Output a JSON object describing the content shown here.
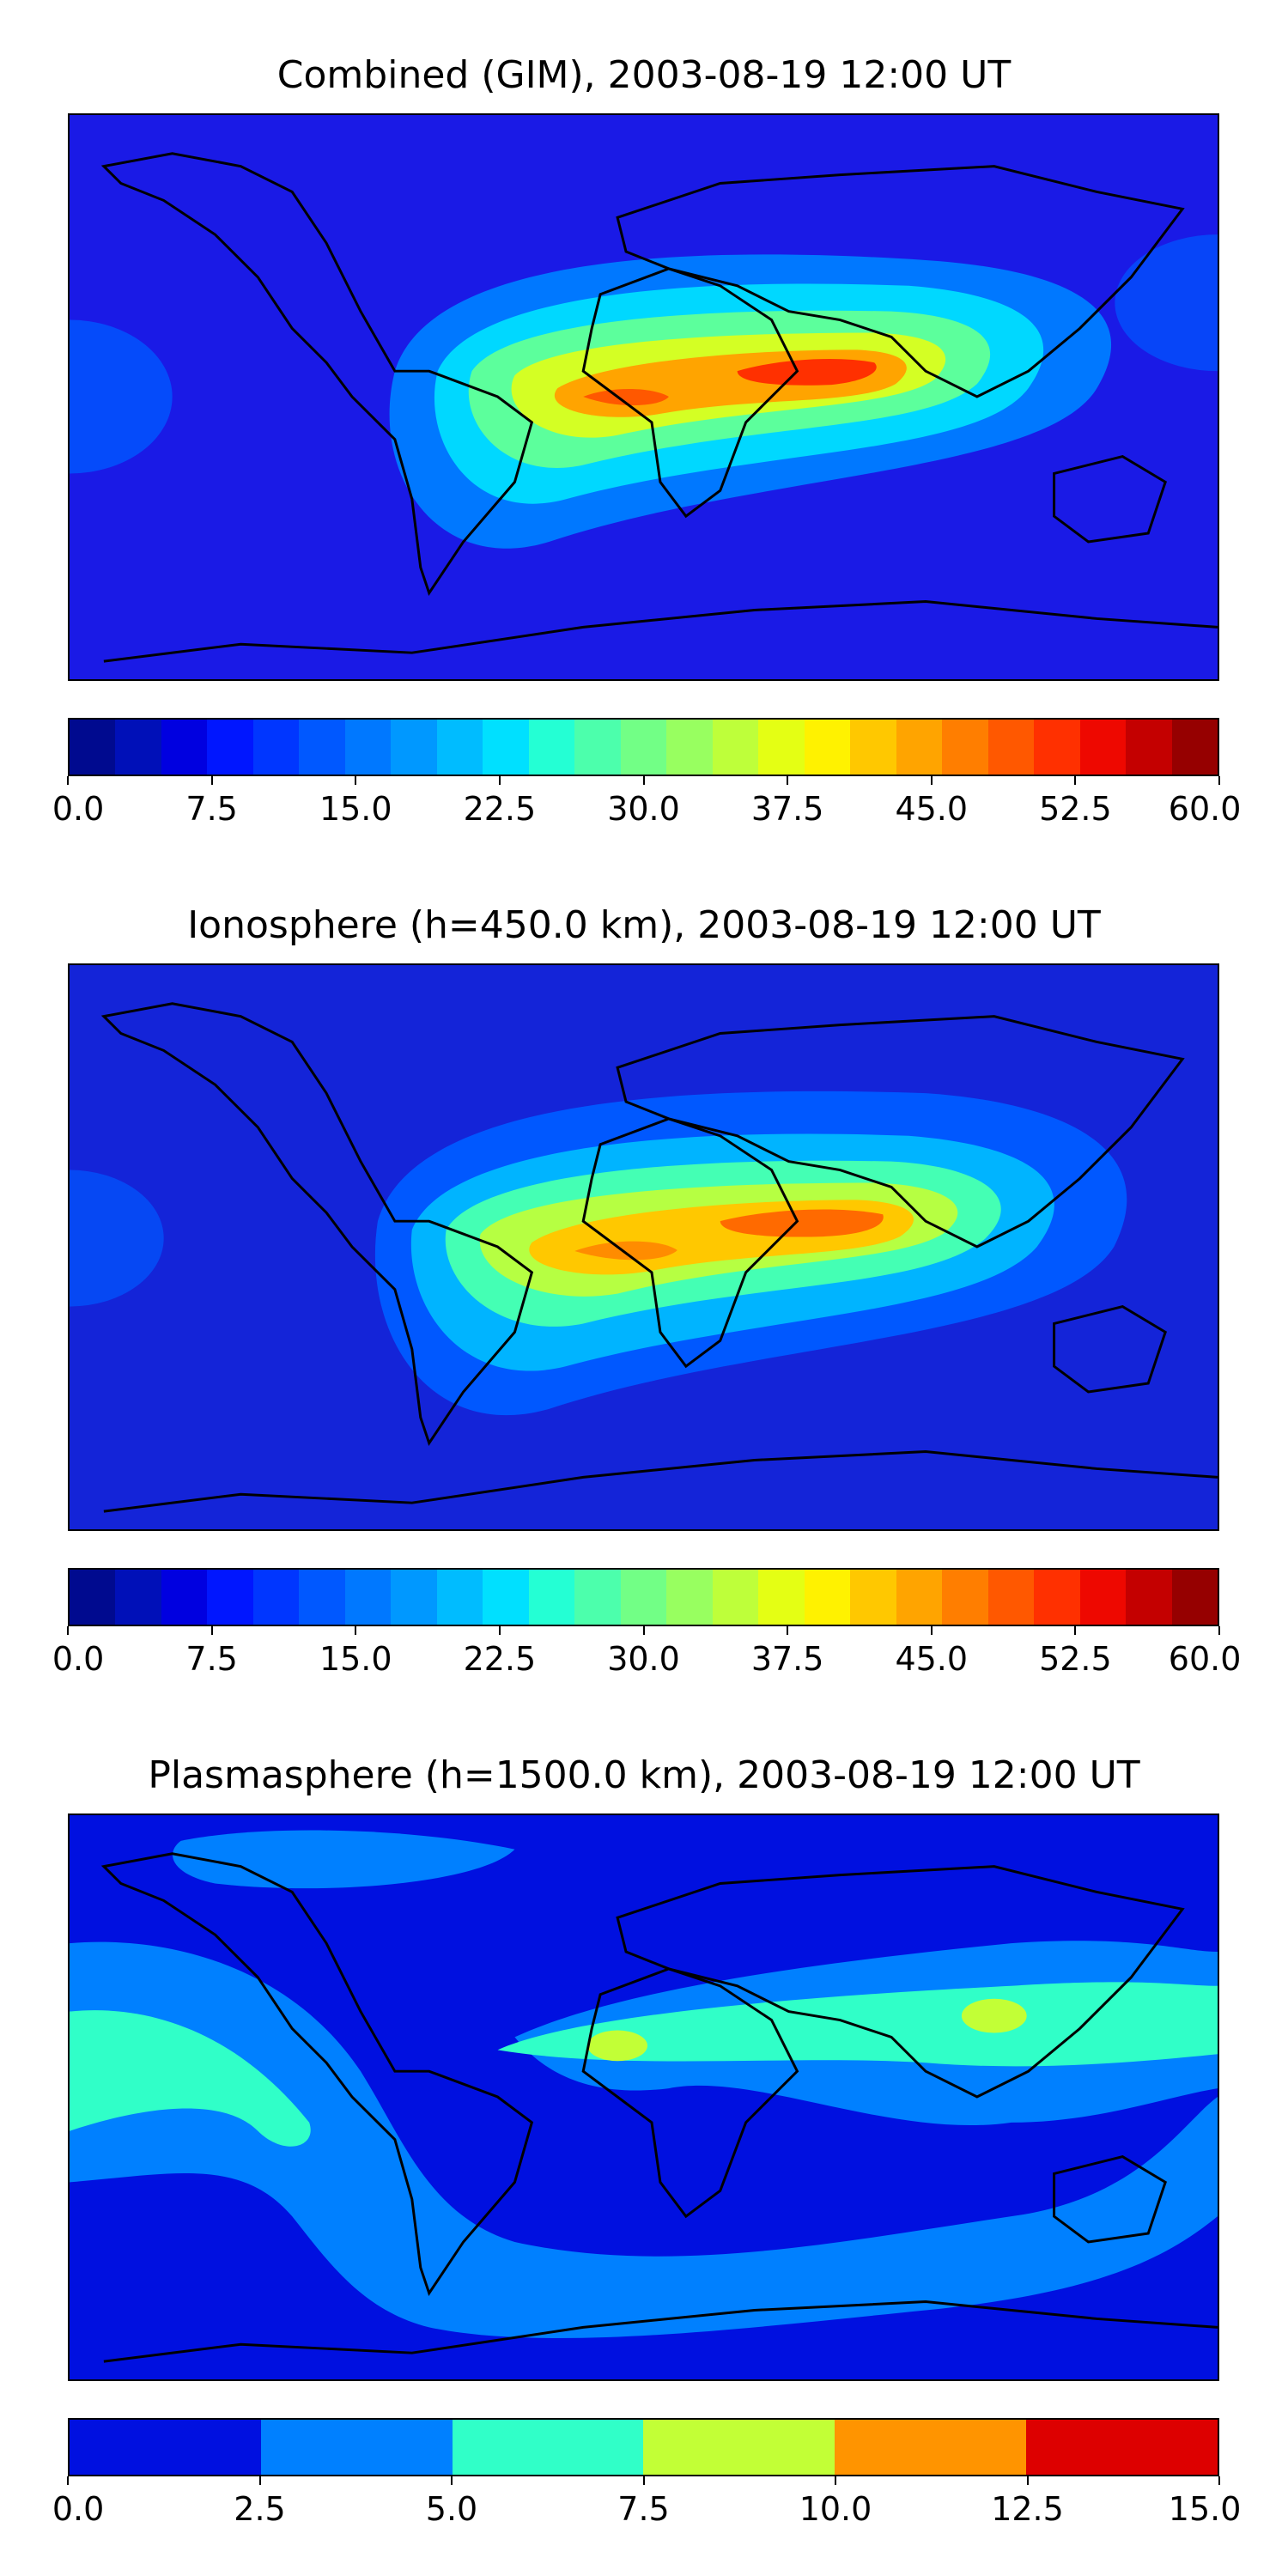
{
  "panels": [
    {
      "title": "Combined (GIM), 2003-08-19 12:00 UT",
      "colorbar": {
        "colors": [
          "#000a8f",
          "#0010b8",
          "#0000e0",
          "#0016ff",
          "#0036ff",
          "#0058ff",
          "#0078ff",
          "#0098ff",
          "#00bcff",
          "#00e0ff",
          "#24ffd4",
          "#4cffac",
          "#72ff86",
          "#98ff60",
          "#beff3a",
          "#e4ff14",
          "#fff200",
          "#ffc800",
          "#ffa400",
          "#ff7e00",
          "#ff5800",
          "#ff3000",
          "#ee0800",
          "#c40000",
          "#960000"
        ],
        "ticks": [
          "0.0",
          "7.5",
          "15.0",
          "22.5",
          "30.0",
          "37.5",
          "45.0",
          "52.5",
          "60.0"
        ]
      },
      "map": {
        "background": "#1a1ae6",
        "contours": [
          {
            "label": "band-12",
            "color": "#0078ff"
          },
          {
            "label": "band-20",
            "color": "#00d8ff"
          },
          {
            "label": "band-27",
            "color": "#5cff9c"
          },
          {
            "label": "band-35",
            "color": "#d4ff24"
          },
          {
            "label": "band-42",
            "color": "#ffa400"
          },
          {
            "label": "band-50",
            "color": "#ff3000"
          }
        ]
      }
    },
    {
      "title": "Ionosphere  (h=450.0 km), 2003-08-19 12:00 UT",
      "colorbar": {
        "colors": [
          "#000a8f",
          "#0010b8",
          "#0000e0",
          "#0016ff",
          "#0036ff",
          "#0058ff",
          "#0078ff",
          "#0098ff",
          "#00bcff",
          "#00e0ff",
          "#24ffd4",
          "#4cffac",
          "#72ff86",
          "#98ff60",
          "#beff3a",
          "#e4ff14",
          "#fff200",
          "#ffc800",
          "#ffa400",
          "#ff7e00",
          "#ff5800",
          "#ff3000",
          "#ee0800",
          "#c40000",
          "#960000"
        ],
        "ticks": [
          "0.0",
          "7.5",
          "15.0",
          "22.5",
          "30.0",
          "37.5",
          "45.0",
          "52.5",
          "60.0"
        ]
      },
      "map": {
        "background": "#1424d8",
        "contours": [
          {
            "label": "band-10",
            "color": "#0058ff"
          },
          {
            "label": "band-17",
            "color": "#00b4ff"
          },
          {
            "label": "band-25",
            "color": "#44ffb4"
          },
          {
            "label": "band-32",
            "color": "#b6ff42"
          },
          {
            "label": "band-40",
            "color": "#ffc800"
          },
          {
            "label": "band-47",
            "color": "#ff6a00"
          }
        ]
      }
    },
    {
      "title": "Plasmasphere (h=1500.0 km), 2003-08-19 12:00 UT",
      "colorbar": {
        "colors": [
          "#0010e0",
          "#0080ff",
          "#30ffc8",
          "#c2ff36",
          "#ff9400",
          "#dd0000"
        ],
        "ticks": [
          "0.0",
          "2.5",
          "5.0",
          "7.5",
          "10.0",
          "12.5",
          "15.0"
        ]
      },
      "map": {
        "background": "#0010e0",
        "contours": [
          {
            "label": "band-2.5",
            "color": "#0080ff"
          },
          {
            "label": "band-5.0",
            "color": "#30ffc8"
          },
          {
            "label": "band-7.5",
            "color": "#c2ff36"
          }
        ]
      }
    }
  ]
}
